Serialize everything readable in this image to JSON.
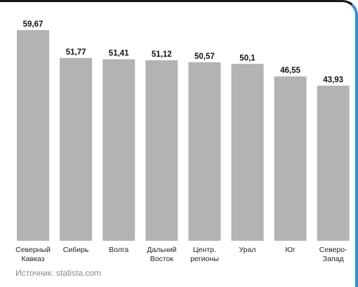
{
  "chart_data": {
    "type": "bar",
    "categories": [
      [
        "Северный",
        "Кавказ"
      ],
      [
        "Сибирь"
      ],
      [
        "Волга"
      ],
      [
        "Дальний",
        "Восток"
      ],
      [
        "Центр.",
        "регионы"
      ],
      [
        "Урал"
      ],
      [
        "Юг"
      ],
      [
        "Северо-",
        "Запад"
      ]
    ],
    "values": [
      59.67,
      51.77,
      51.41,
      51.12,
      50.57,
      50.1,
      46.55,
      43.93
    ],
    "value_labels": [
      "59,67",
      "51,77",
      "51,41",
      "51,12",
      "50,57",
      "50,1",
      "46,55",
      "43,93"
    ],
    "ylim": [
      0,
      59.67
    ],
    "grid": false,
    "bar_color": "#b3b3b3"
  },
  "source": "Источник: statista.com",
  "colors": {
    "frame_top": "#1a1a1a",
    "frame_right": "#2f8fd8"
  }
}
